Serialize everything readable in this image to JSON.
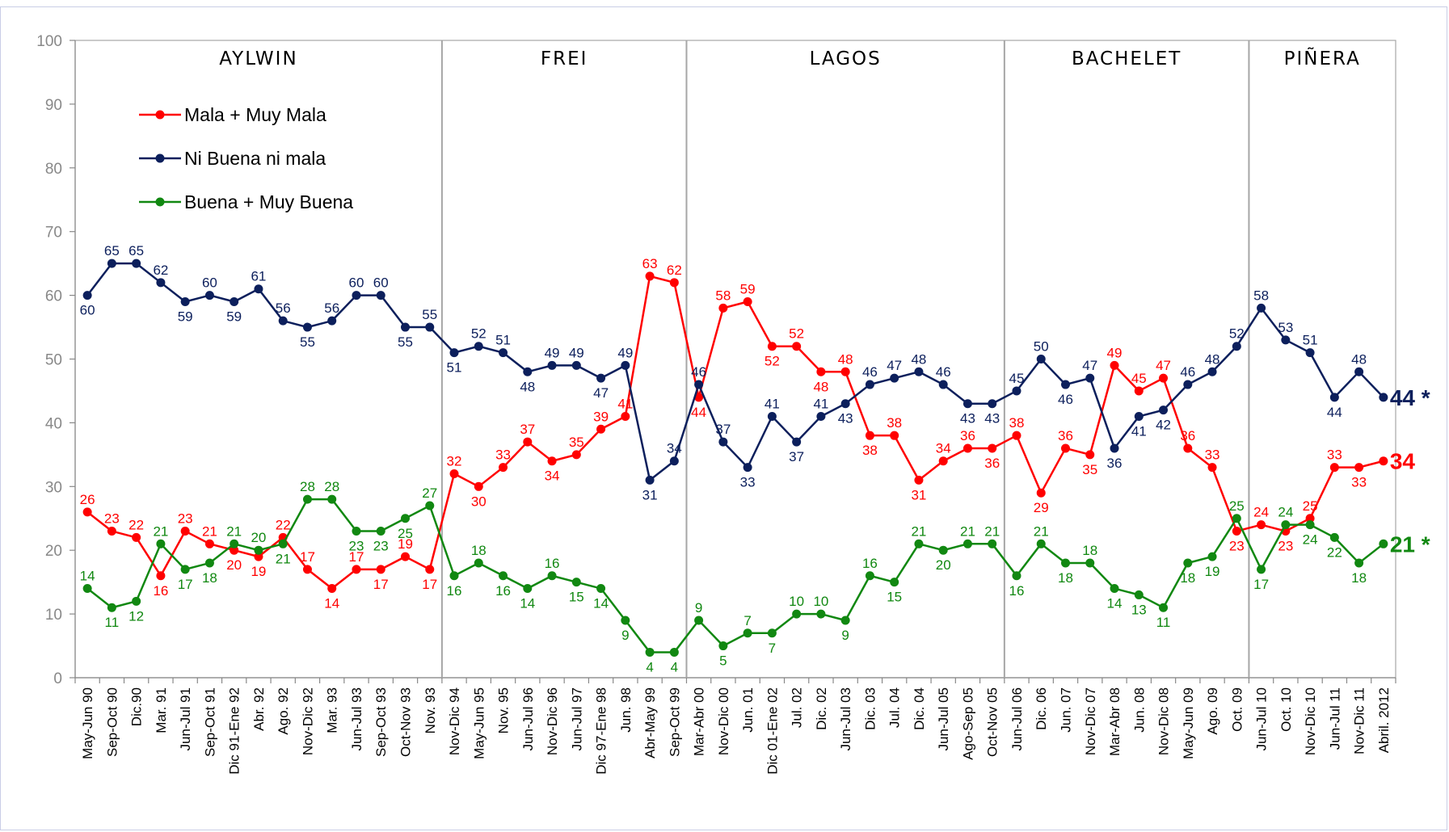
{
  "chart_data": {
    "type": "line",
    "title": "",
    "xlabel": "",
    "ylabel": "",
    "ylim": [
      0,
      100
    ],
    "yticks": [
      0,
      10,
      20,
      30,
      40,
      50,
      60,
      70,
      80,
      90,
      100
    ],
    "grid": false,
    "legend": "top-left",
    "categories": [
      "May-Jun 90",
      "Sep-Oct 90",
      "Dic.90",
      "Mar. 91",
      "Jun-Jul 91",
      "Sep-Oct 91",
      "Dic 91-Ene 92",
      "Abr. 92",
      "Ago. 92",
      "Nov-Dic 92",
      "Mar. 93",
      "Jun-Jul 93",
      "Sep-Oct 93",
      "Oct-Nov 93",
      "Nov. 93",
      "Nov-Dic 94",
      "May-Jun 95",
      "Nov. 95",
      "Jun-Jul 96",
      "Nov-Dic 96",
      "Jun-Jul 97",
      "Dic 97-Ene 98",
      "Jun. 98",
      "Abr-May 99",
      "Sep-Oct 99",
      "Mar-Abr 00",
      "Nov-Dic 00",
      "Jun. 01",
      "Dic 01-Ene 02",
      "Jul. 02",
      "Dic. 02",
      "Jun-Jul 03",
      "Dic. 03",
      "Jul. 04",
      "Dic. 04",
      "Jun-Jul 05",
      "Ago-Sep 05",
      "Oct-Nov 05",
      "Jun-Jul 06",
      "Dic. 06",
      "Jun. 07",
      "Nov-Dic 07",
      "Mar-Abr 08",
      "Jun. 08",
      "Nov-Dic 08",
      "May-Jun 09",
      "Ago. 09",
      "Oct. 09",
      "Jun-Jul 10",
      "Oct. 10",
      "Nov-Dic 10",
      "Jun-Jul 11",
      "Nov-Dic 11",
      "Abril. 2012"
    ],
    "periods": [
      {
        "label": "AYLWIN",
        "start": 0,
        "end": 14
      },
      {
        "label": "FREI",
        "start": 15,
        "end": 24
      },
      {
        "label": "LAGOS",
        "start": 25,
        "end": 37
      },
      {
        "label": "BACHELET",
        "start": 38,
        "end": 47
      },
      {
        "label": "PIÑERA",
        "start": 48,
        "end": 53
      }
    ],
    "series": [
      {
        "name": "Mala + Muy Mala",
        "color": "#ff0000",
        "values": [
          26,
          23,
          22,
          16,
          23,
          21,
          20,
          19,
          22,
          17,
          14,
          17,
          17,
          19,
          17,
          32,
          30,
          33,
          37,
          34,
          35,
          39,
          41,
          63,
          62,
          44,
          58,
          59,
          52,
          52,
          48,
          48,
          38,
          38,
          31,
          34,
          36,
          36,
          38,
          29,
          36,
          35,
          49,
          45,
          47,
          36,
          33,
          23,
          24,
          23,
          25,
          33,
          33,
          34
        ],
        "final_label": "34"
      },
      {
        "name": "Ni Buena ni mala",
        "color": "#0c1f5c",
        "values": [
          60,
          65,
          65,
          62,
          59,
          60,
          59,
          61,
          56,
          55,
          56,
          60,
          60,
          55,
          55,
          51,
          52,
          51,
          48,
          49,
          49,
          47,
          49,
          31,
          34,
          46,
          37,
          33,
          41,
          37,
          41,
          43,
          46,
          47,
          48,
          46,
          43,
          43,
          45,
          50,
          46,
          47,
          36,
          41,
          42,
          46,
          48,
          52,
          58,
          53,
          51,
          44,
          48,
          44
        ],
        "final_label": "44 *"
      },
      {
        "name": "Buena + Muy Buena",
        "color": "#118811",
        "values": [
          14,
          11,
          12,
          21,
          17,
          18,
          21,
          20,
          21,
          28,
          28,
          23,
          23,
          25,
          27,
          16,
          18,
          16,
          14,
          16,
          15,
          14,
          9,
          4,
          4,
          9,
          5,
          7,
          7,
          10,
          10,
          9,
          16,
          15,
          21,
          20,
          21,
          21,
          16,
          21,
          18,
          18,
          14,
          13,
          11,
          18,
          19,
          25,
          17,
          24,
          24,
          22,
          18,
          21
        ],
        "final_label": "21 *"
      }
    ]
  }
}
